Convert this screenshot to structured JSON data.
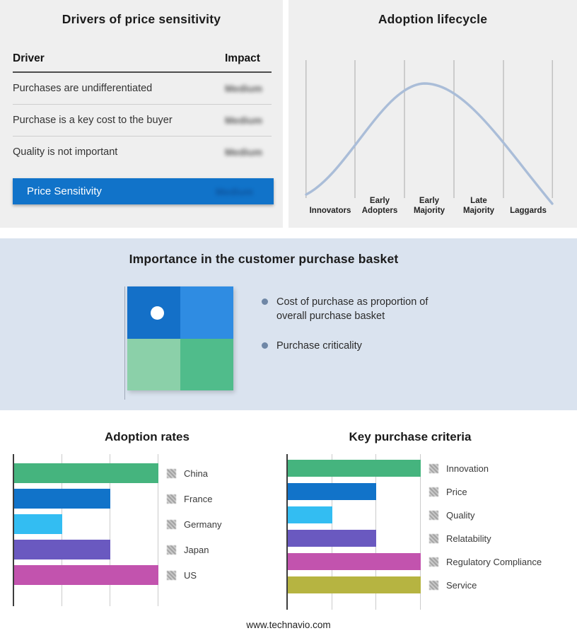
{
  "colors": {
    "panel-bg": "#efefef",
    "band-bg": "#dae3ef",
    "summary-bar": "#1173c9",
    "curve": "#aabdd8",
    "bullet-dot": "#6f87a6",
    "quad-tl": "#1470c8",
    "quad-tr": "#2f8ce2",
    "quad-bl": "#8bd0a9",
    "quad-br": "#50bc8b"
  },
  "basket": {
    "title": "Importance in the customer purchase basket",
    "bullets": [
      "Cost of purchase as proportion of overall purchase basket",
      "Purchase criticality"
    ]
  },
  "footer": {
    "url": "www.technavio.com"
  },
  "chart_data": [
    {
      "type": "table",
      "title": "Drivers of price sensitivity",
      "columns": [
        "Driver",
        "Impact"
      ],
      "rows": [
        [
          "Purchases are undifferentiated",
          "Medium"
        ],
        [
          "Purchase is a key cost to the buyer",
          "Medium"
        ],
        [
          "Quality is not important",
          "Medium"
        ]
      ],
      "highlight_row": {
        "label": "Price Sensitivity",
        "impact": "Medium"
      },
      "note": "Impact values are shown blurred in the source image"
    },
    {
      "type": "line",
      "title": "Adoption lifecycle",
      "categories": [
        "Innovators",
        "Early Adopters",
        "Early Majority",
        "Late Majority",
        "Laggards"
      ],
      "description": "Bell-shaped adoption curve peaking over Early Majority",
      "legend_position": "none",
      "grid": true
    },
    {
      "type": "bar",
      "title": "Adoption rates",
      "orientation": "horizontal",
      "categories": [
        "China",
        "France",
        "Germany",
        "Japan",
        "US"
      ],
      "values": [
        3,
        2,
        1,
        2,
        3
      ],
      "xlim": [
        0,
        3
      ],
      "grid": true,
      "legend_position": "right",
      "bar_colors": [
        "#45b47e",
        "#1173c9",
        "#33bdf2",
        "#6a59c0",
        "#c253ae"
      ]
    },
    {
      "type": "bar",
      "title": "Key purchase criteria",
      "orientation": "horizontal",
      "categories": [
        "Innovation",
        "Price",
        "Quality",
        "Relatability",
        "Regulatory Compliance",
        "Service"
      ],
      "values": [
        3,
        2,
        1,
        2,
        3,
        3
      ],
      "xlim": [
        0,
        3
      ],
      "grid": true,
      "legend_position": "right",
      "bar_colors": [
        "#45b47e",
        "#1173c9",
        "#33bdf2",
        "#6a59c0",
        "#c253ae",
        "#b6b441"
      ]
    }
  ]
}
